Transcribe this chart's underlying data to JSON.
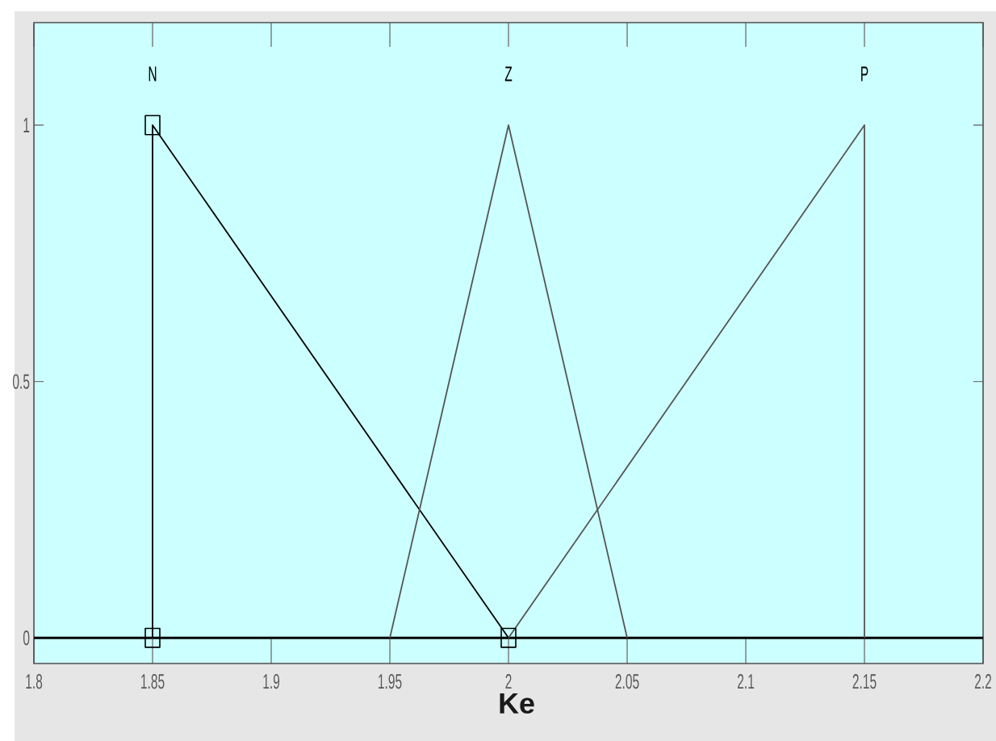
{
  "chart_data": {
    "type": "line",
    "xlabel": "Ke",
    "xlim": [
      1.8,
      2.2
    ],
    "ylim": [
      -0.05,
      1.2
    ],
    "xticks": [
      1.8,
      1.85,
      1.9,
      1.95,
      2,
      2.05,
      2.1,
      2.15,
      2.2
    ],
    "yticks": [
      0,
      0.5,
      1
    ],
    "series": [
      {
        "name": "N",
        "color": "#000000",
        "marker": "square",
        "x": [
          1.85,
          1.85,
          2
        ],
        "values": [
          0,
          1,
          0
        ]
      },
      {
        "name": "Z",
        "color": "#555555",
        "x": [
          1.95,
          2,
          2.05
        ],
        "values": [
          0,
          1,
          0
        ]
      },
      {
        "name": "P",
        "color": "#555555",
        "x": [
          2,
          2.15,
          2.15
        ],
        "values": [
          0,
          1,
          0
        ]
      }
    ],
    "ref_lines": [
      {
        "axis": "y",
        "value": 0,
        "color": "#000000"
      }
    ]
  }
}
